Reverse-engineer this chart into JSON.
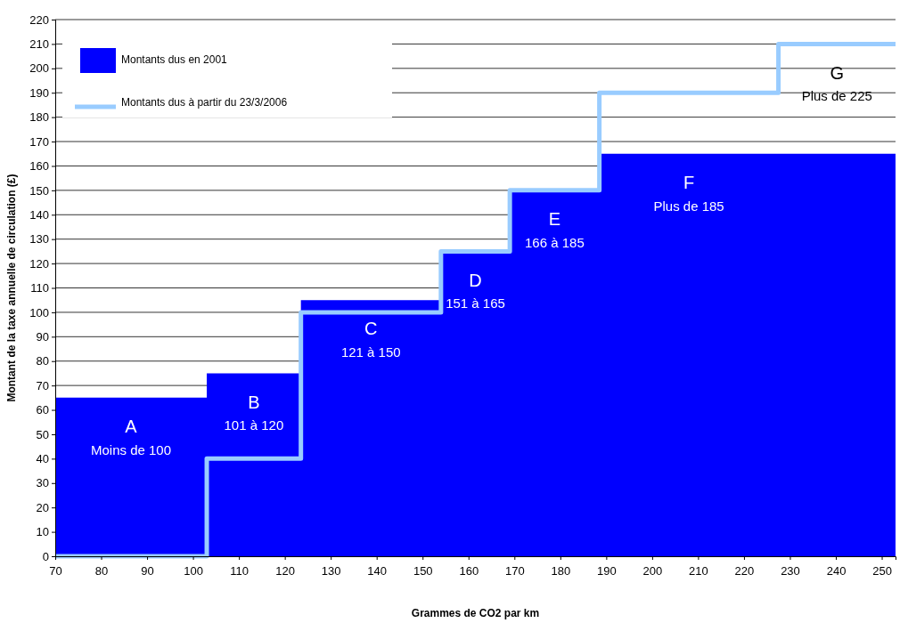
{
  "chart_data": {
    "type": "step",
    "xlabel": "Grammes de CO2 par km",
    "ylabel": "Montant de la taxe annuelle de circulation (£)",
    "xlim": [
      70,
      253
    ],
    "xticks": [
      70,
      80,
      90,
      100,
      110,
      120,
      130,
      140,
      150,
      160,
      170,
      180,
      190,
      200,
      210,
      220,
      230,
      240,
      250
    ],
    "ylim": [
      0,
      220
    ],
    "yticks": [
      0,
      10,
      20,
      30,
      40,
      50,
      60,
      70,
      80,
      90,
      100,
      110,
      120,
      130,
      140,
      150,
      160,
      170,
      180,
      190,
      200,
      210,
      220
    ],
    "grid": "y",
    "legend": "top left",
    "series": [
      {
        "name": "Montants dus en 2001",
        "type": "area",
        "color": "#0000ff",
        "x": [
          70,
          103,
          123.5,
          154,
          169,
          188.5,
          253
        ],
        "values": [
          65,
          75,
          105,
          125,
          150,
          165,
          165
        ]
      },
      {
        "name": "Montants dus à partir du 23/3/2006",
        "type": "step",
        "color": "#99ccff",
        "x": [
          70,
          103,
          123.5,
          154,
          169,
          188.5,
          227.5,
          253
        ],
        "values": [
          0,
          40,
          100,
          125,
          150,
          190,
          210,
          210
        ]
      }
    ],
    "annotations": [
      "A",
      "Moins de 100",
      "B",
      "101 à 120",
      "C",
      "121 à 150",
      "D",
      "151 à 165",
      "E",
      "166 à 185",
      "F",
      "Plus de 185",
      "G",
      "Plus de 225"
    ]
  }
}
